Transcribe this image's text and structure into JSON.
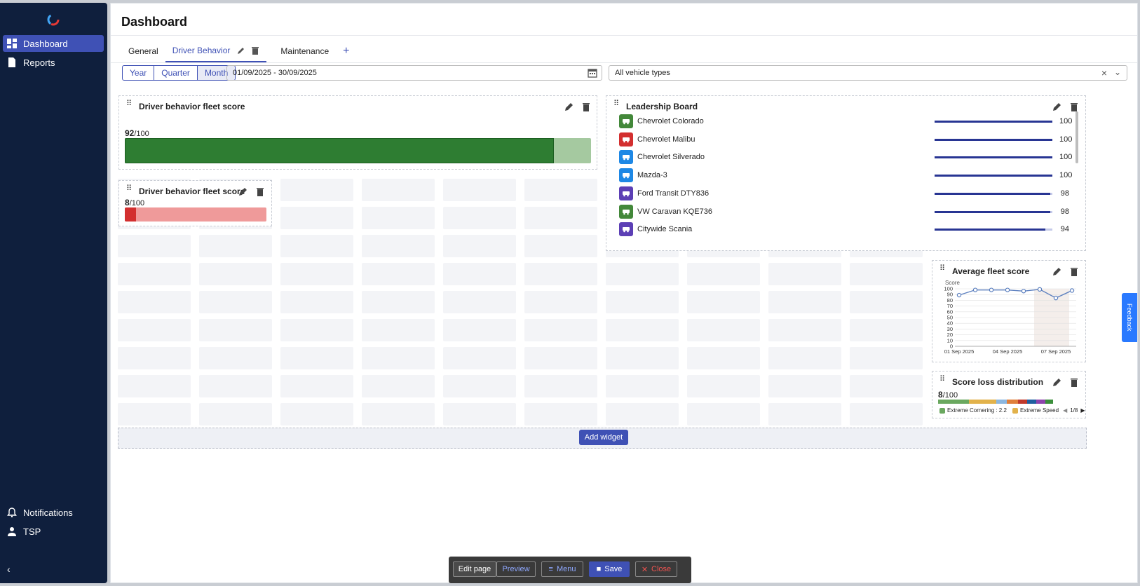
{
  "sidebar": {
    "items": [
      {
        "label": "Dashboard",
        "icon": "dashboard-icon",
        "active": true
      },
      {
        "label": "Reports",
        "icon": "document-icon",
        "active": false
      }
    ],
    "bottom": [
      {
        "label": "Notifications",
        "icon": "bell-icon"
      },
      {
        "label": "TSP",
        "icon": "user-icon"
      }
    ]
  },
  "header": {
    "title": "Dashboard"
  },
  "tabs": [
    {
      "label": "General",
      "active": false
    },
    {
      "label": "Driver Behavior",
      "active": true
    },
    {
      "label": "Maintenance",
      "active": false
    }
  ],
  "filters": {
    "periods": [
      "Year",
      "Quarter",
      "Month"
    ],
    "selected_period": "Month",
    "date_range": "01/09/2025 - 30/09/2025",
    "vehicle_types": "All vehicle types"
  },
  "widgets": {
    "fleet_score": {
      "title": "Driver behavior fleet score",
      "score": "92",
      "max": "/100",
      "fraction": 0.92
    },
    "fleet_score_small": {
      "title": "Driver behavior fleet score",
      "score": "8",
      "max": "/100",
      "fraction": 0.08
    },
    "leaderboard": {
      "title": "Leadership Board",
      "rows": [
        {
          "name": "Chevrolet Colorado",
          "value": "100",
          "fraction": 1.0,
          "color": "#43883a",
          "icon": "car-icon"
        },
        {
          "name": "Chevrolet Malibu",
          "value": "100",
          "fraction": 1.0,
          "color": "#d32f2f",
          "icon": "car-icon"
        },
        {
          "name": "Chevrolet Silverado",
          "value": "100",
          "fraction": 1.0,
          "color": "#1e88e5",
          "icon": "truck-icon"
        },
        {
          "name": "Mazda-3",
          "value": "100",
          "fraction": 1.0,
          "color": "#1e88e5",
          "icon": "van-icon"
        },
        {
          "name": "Ford Transit DTY836",
          "value": "98",
          "fraction": 0.98,
          "color": "#5c3fb5",
          "icon": "truck-icon"
        },
        {
          "name": "VW Caravan KQE736",
          "value": "98",
          "fraction": 0.98,
          "color": "#43883a",
          "icon": "truck-icon"
        },
        {
          "name": "Citywide Scania",
          "value": "94",
          "fraction": 0.94,
          "color": "#5c3fb5",
          "icon": "bus-icon"
        }
      ]
    },
    "avg_score": {
      "title": "Average fleet score",
      "ylabel": "Score"
    },
    "loss": {
      "title": "Score loss distribution",
      "score": "8",
      "max": "/100",
      "segments": [
        {
          "color": "#6aa85f",
          "value": 0.2
        },
        {
          "color": "#e2b24b",
          "value": 0.18
        },
        {
          "color": "#8cb7e0",
          "value": 0.07
        },
        {
          "color": "#e07f3a",
          "value": 0.07
        },
        {
          "color": "#c0392b",
          "value": 0.06
        },
        {
          "color": "#1f5fa0",
          "value": 0.06
        },
        {
          "color": "#8e44ad",
          "value": 0.06
        },
        {
          "color": "#3b8f3b",
          "value": 0.05
        }
      ],
      "legend": [
        {
          "label": "Extreme Cornering : 2.2",
          "color": "#6aa85f"
        },
        {
          "label": "Extreme Speed",
          "color": "#e2b24b"
        }
      ],
      "page": "1/8"
    }
  },
  "chart_data": {
    "type": "line",
    "ylabel": "Score",
    "ylim": [
      0,
      100
    ],
    "yticks": [
      0,
      10,
      20,
      30,
      40,
      50,
      60,
      70,
      80,
      90,
      100
    ],
    "x": [
      "01 Sep 2025",
      "02 Sep 2025",
      "03 Sep 2025",
      "04 Sep 2025",
      "05 Sep 2025",
      "06 Sep 2025",
      "07 Sep 2025",
      "08 Sep 2025"
    ],
    "xtick_labels": [
      "01 Sep 2025",
      "04 Sep 2025",
      "07 Sep 2025"
    ],
    "series": [
      {
        "values": [
          89,
          98,
          98,
          98,
          96,
          99,
          84,
          97
        ]
      }
    ],
    "grid": true
  },
  "add_widget": "Add widget",
  "feedback": "Feedback",
  "toolbar": {
    "edit": "Edit page",
    "preview": "Preview",
    "menu": "Menu",
    "save": "Save",
    "close": "Close"
  }
}
